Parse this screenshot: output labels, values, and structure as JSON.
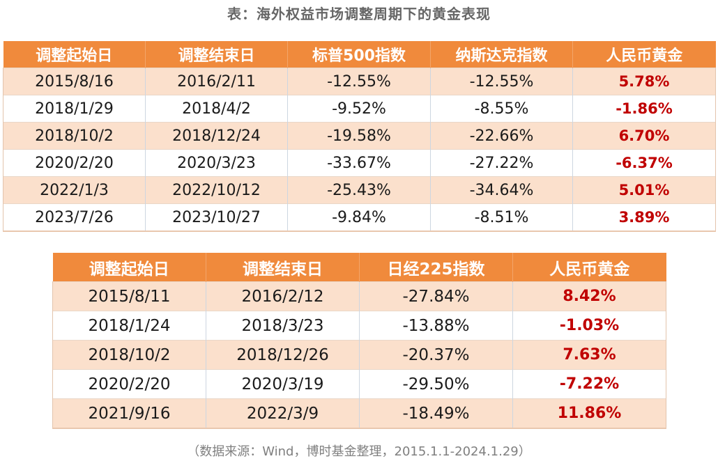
{
  "title": "表：海外权益市场调整周期下的黄金表现",
  "table1": {
    "headers": [
      "调整起始日",
      "调整结束日",
      "标普500指数",
      "纳斯达克指数",
      "人民币黄金"
    ],
    "rows": [
      [
        "2015/8/16",
        "2016/2/11",
        "-12.55%",
        "-12.55%",
        "5.78%"
      ],
      [
        "2018/1/29",
        "2018/4/2",
        "-9.52%",
        "-8.55%",
        "-1.86%"
      ],
      [
        "2018/10/2",
        "2018/12/24",
        "-19.58%",
        "-22.66%",
        "6.70%"
      ],
      [
        "2020/2/20",
        "2020/3/23",
        "-33.67%",
        "-27.22%",
        "-6.37%"
      ],
      [
        "2022/1/3",
        "2022/10/12",
        "-25.43%",
        "-34.64%",
        "5.01%"
      ],
      [
        "2023/7/26",
        "2023/10/27",
        "-9.84%",
        "-8.51%",
        "3.89%"
      ]
    ]
  },
  "table2": {
    "headers": [
      "调整起始日",
      "调整结束日",
      "日经225指数",
      "人民币黄金"
    ],
    "rows": [
      [
        "2015/8/11",
        "2016/2/12",
        "-27.84%",
        "8.42%"
      ],
      [
        "2018/1/24",
        "2018/3/23",
        "-13.88%",
        "-1.03%"
      ],
      [
        "2018/10/2",
        "2018/12/26",
        "-20.37%",
        "7.63%"
      ],
      [
        "2020/2/20",
        "2020/3/19",
        "-29.50%",
        "-7.22%"
      ],
      [
        "2021/9/16",
        "2022/3/9",
        "-18.49%",
        "11.86%"
      ]
    ]
  },
  "source": "（数据来源：Wind，博时基金整理，2015.1.1-2024.1.29）",
  "colors": {
    "header_bg": "#f08a3c",
    "stripe_bg": "#fbe0cc",
    "gold_text": "#c00000",
    "title_text": "#666666"
  }
}
